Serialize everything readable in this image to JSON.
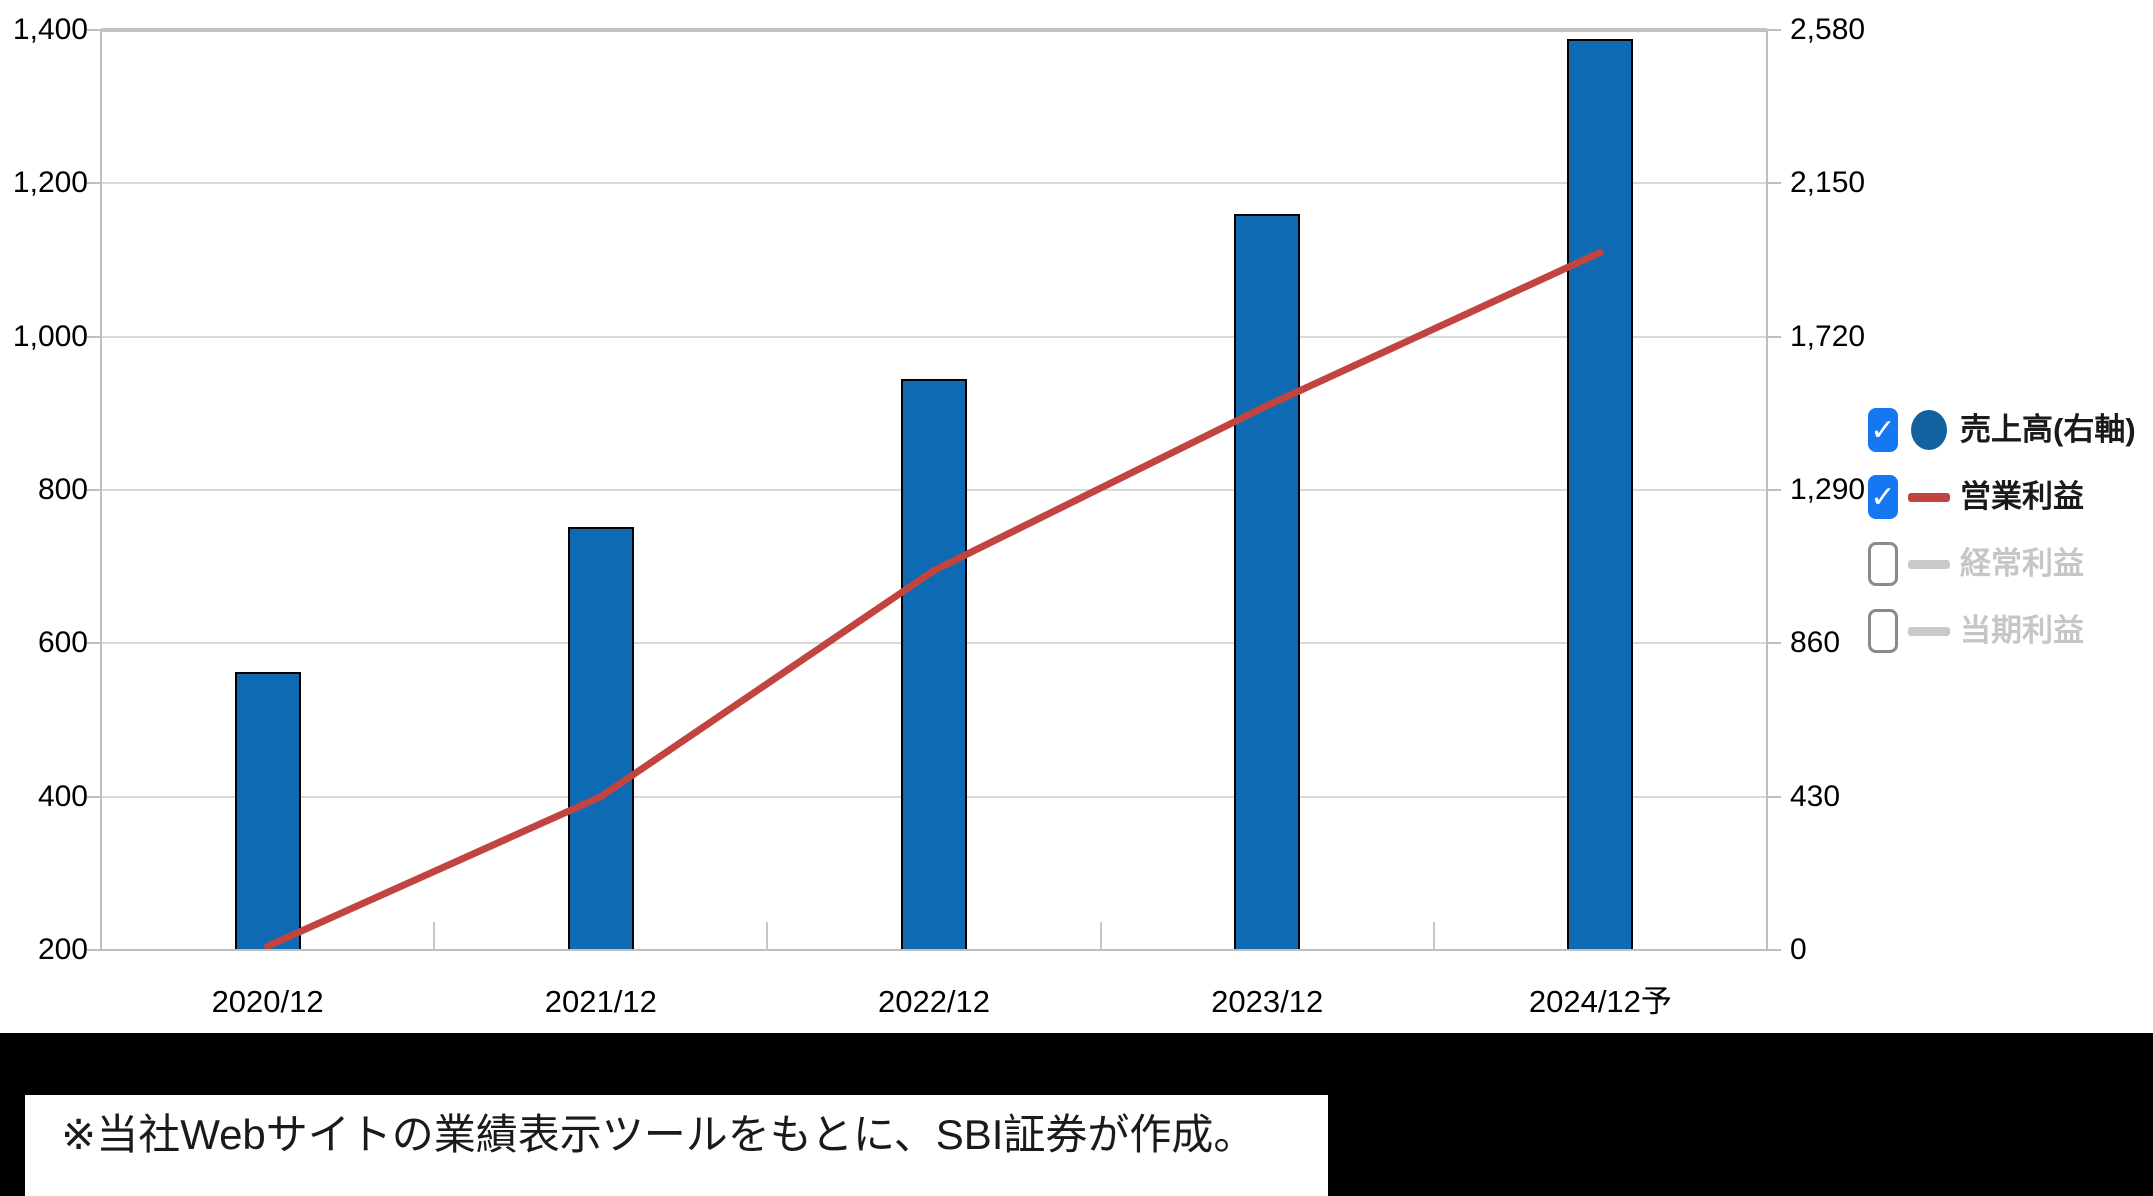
{
  "note": {
    "text": "※当社Webサイトの業績表示ツールをもとに、SBI証券が作成。"
  },
  "colors": {
    "bar": "#0e6ab2",
    "bar_border": "#000000",
    "line": "#c24440",
    "checkbox_checked": "#1677f2",
    "checkbox_unchecked_border": "#8a8a8a",
    "legend_circle": "#13629f",
    "disabled_marker": "#c9c9c9",
    "disabled_text": "#c6c6c6",
    "label_text": "#000000",
    "grid": "#d9d9d9",
    "figure_bg": "#ffffff",
    "bottom_bg": "#000000"
  },
  "legend": {
    "items": [
      {
        "label": "売上高(右軸)",
        "checked": true,
        "marker": "circle",
        "marker_color": "#13629f",
        "text_color": "#1a1a1a"
      },
      {
        "label": "営業利益",
        "checked": true,
        "marker": "line",
        "marker_color": "#c24440",
        "text_color": "#1a1a1a"
      },
      {
        "label": "経常利益",
        "checked": false,
        "marker": "line",
        "marker_color": "#c9c9c9",
        "text_color": "#c6c6c6"
      },
      {
        "label": "当期利益",
        "checked": false,
        "marker": "line",
        "marker_color": "#c9c9c9",
        "text_color": "#c6c6c6"
      }
    ],
    "check_glyph": "✓"
  },
  "chart_data": {
    "type": "bar",
    "subtype": "combo-bar-line-dual-axis",
    "categories": [
      "2020/12",
      "2021/12",
      "2022/12",
      "2023/12",
      "2024/12予"
    ],
    "series": [
      {
        "name": "売上高(右軸)",
        "type": "bar",
        "axis": "right",
        "color": "#0e6ab2",
        "values": [
          780,
          1185,
          1600,
          2065,
          2555
        ]
      },
      {
        "name": "営業利益",
        "type": "line",
        "axis": "left",
        "color": "#c24440",
        "values": [
          205,
          400,
          695,
          910,
          1110
        ]
      }
    ],
    "left_axis": {
      "min": 200,
      "max": 1400,
      "tick_values": [
        1400,
        1200,
        1000,
        800,
        600,
        400,
        200
      ],
      "tick_labels": [
        "1,400",
        "1,200",
        "1,000",
        "800",
        "600",
        "400",
        "200"
      ]
    },
    "right_axis": {
      "min": 0,
      "max": 2580,
      "tick_values": [
        2580,
        2150,
        1720,
        1290,
        860,
        430,
        0
      ],
      "tick_labels": [
        "2,580",
        "2,150",
        "1,720",
        "1,290",
        "860",
        "430",
        "0"
      ]
    },
    "grid": true,
    "legend_position": "right"
  }
}
